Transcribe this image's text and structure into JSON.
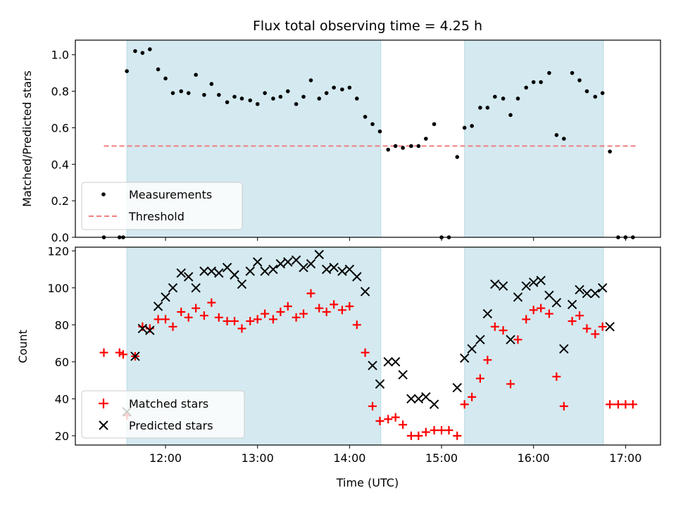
{
  "chart_data": {
    "type": "scatter",
    "title": "Flux total observing time = 4.25 h",
    "xlabel": "Time (UTC)",
    "x_ticks": [
      "12:00",
      "13:00",
      "14:00",
      "15:00",
      "16:00",
      "17:00"
    ],
    "x_tick_hours": [
      12,
      13,
      14,
      15,
      16,
      17
    ],
    "xlim_hours": [
      11.02,
      17.38
    ],
    "shaded_intervals_hours": [
      [
        11.58,
        14.34
      ],
      [
        15.25,
        16.76
      ]
    ],
    "shade_color": "#d4eaf0",
    "panels": [
      {
        "ylabel": "Matched/Predicted stars",
        "ylim": [
          0,
          1.08
        ],
        "yticks": [
          "0.0",
          "0.2",
          "0.4",
          "0.6",
          "0.8",
          "1.0"
        ],
        "ytick_values": [
          0,
          0.2,
          0.4,
          0.6,
          0.8,
          1.0
        ],
        "threshold": {
          "name": "Threshold",
          "y": 0.5,
          "x_range_hours": [
            11.33,
            17.11
          ],
          "color": "#f07f7f"
        },
        "series": [
          {
            "name": "Measurements",
            "color": "#000000",
            "marker": "dot",
            "points": [
              [
                11.33,
                0
              ],
              [
                11.5,
                0
              ],
              [
                11.54,
                0
              ],
              [
                11.58,
                0.91
              ],
              [
                11.67,
                1.02
              ],
              [
                11.75,
                1.01
              ],
              [
                11.83,
                1.03
              ],
              [
                11.92,
                0.92
              ],
              [
                12.0,
                0.87
              ],
              [
                12.08,
                0.79
              ],
              [
                12.17,
                0.8
              ],
              [
                12.25,
                0.79
              ],
              [
                12.33,
                0.89
              ],
              [
                12.42,
                0.78
              ],
              [
                12.5,
                0.84
              ],
              [
                12.58,
                0.78
              ],
              [
                12.67,
                0.74
              ],
              [
                12.75,
                0.77
              ],
              [
                12.83,
                0.76
              ],
              [
                12.92,
                0.75
              ],
              [
                13.0,
                0.73
              ],
              [
                13.08,
                0.79
              ],
              [
                13.17,
                0.76
              ],
              [
                13.25,
                0.77
              ],
              [
                13.33,
                0.8
              ],
              [
                13.42,
                0.73
              ],
              [
                13.5,
                0.77
              ],
              [
                13.58,
                0.86
              ],
              [
                13.67,
                0.76
              ],
              [
                13.75,
                0.79
              ],
              [
                13.83,
                0.82
              ],
              [
                13.92,
                0.81
              ],
              [
                14.0,
                0.82
              ],
              [
                14.08,
                0.76
              ],
              [
                14.17,
                0.66
              ],
              [
                14.25,
                0.62
              ],
              [
                14.33,
                0.58
              ],
              [
                14.42,
                0.48
              ],
              [
                14.5,
                0.5
              ],
              [
                14.58,
                0.49
              ],
              [
                14.67,
                0.5
              ],
              [
                14.75,
                0.5
              ],
              [
                14.83,
                0.54
              ],
              [
                14.92,
                0.62
              ],
              [
                15.0,
                0
              ],
              [
                15.08,
                0
              ],
              [
                15.17,
                0.44
              ],
              [
                15.25,
                0.6
              ],
              [
                15.33,
                0.61
              ],
              [
                15.42,
                0.71
              ],
              [
                15.5,
                0.71
              ],
              [
                15.58,
                0.77
              ],
              [
                15.67,
                0.76
              ],
              [
                15.75,
                0.67
              ],
              [
                15.83,
                0.76
              ],
              [
                15.92,
                0.82
              ],
              [
                16.0,
                0.85
              ],
              [
                16.08,
                0.85
              ],
              [
                16.17,
                0.9
              ],
              [
                16.25,
                0.56
              ],
              [
                16.33,
                0.54
              ],
              [
                16.42,
                0.9
              ],
              [
                16.5,
                0.86
              ],
              [
                16.58,
                0.8
              ],
              [
                16.67,
                0.77
              ],
              [
                16.75,
                0.79
              ],
              [
                16.83,
                0.47
              ],
              [
                16.92,
                0
              ],
              [
                17.0,
                0
              ],
              [
                17.08,
                0
              ]
            ]
          }
        ],
        "legend": {
          "location": "lower-left",
          "entries": [
            "Measurements",
            "Threshold"
          ]
        }
      },
      {
        "ylabel": "Count",
        "ylim": [
          15,
          122
        ],
        "yticks": [
          "20",
          "40",
          "60",
          "80",
          "100",
          "120"
        ],
        "ytick_values": [
          20,
          40,
          60,
          80,
          100,
          120
        ],
        "series": [
          {
            "name": "Matched stars",
            "color": "#ff0000",
            "marker": "plus",
            "points": [
              [
                11.33,
                65
              ],
              [
                11.5,
                65
              ],
              [
                11.54,
                64
              ],
              [
                11.58,
                31
              ],
              [
                11.67,
                63
              ],
              [
                11.75,
                79
              ],
              [
                11.83,
                78
              ],
              [
                11.92,
                83
              ],
              [
                12.0,
                83
              ],
              [
                12.08,
                79
              ],
              [
                12.17,
                87
              ],
              [
                12.25,
                84
              ],
              [
                12.33,
                89
              ],
              [
                12.42,
                85
              ],
              [
                12.5,
                92
              ],
              [
                12.58,
                84
              ],
              [
                12.67,
                82
              ],
              [
                12.75,
                82
              ],
              [
                12.83,
                78
              ],
              [
                12.92,
                82
              ],
              [
                13.0,
                83
              ],
              [
                13.08,
                86
              ],
              [
                13.17,
                83
              ],
              [
                13.25,
                87
              ],
              [
                13.33,
                90
              ],
              [
                13.42,
                84
              ],
              [
                13.5,
                86
              ],
              [
                13.58,
                97
              ],
              [
                13.67,
                89
              ],
              [
                13.75,
                87
              ],
              [
                13.83,
                91
              ],
              [
                13.92,
                88
              ],
              [
                14.0,
                90
              ],
              [
                14.08,
                80
              ],
              [
                14.17,
                65
              ],
              [
                14.25,
                36
              ],
              [
                14.33,
                28
              ],
              [
                14.42,
                29
              ],
              [
                14.5,
                30
              ],
              [
                14.58,
                26
              ],
              [
                14.67,
                20
              ],
              [
                14.75,
                20
              ],
              [
                14.83,
                22
              ],
              [
                14.92,
                23
              ],
              [
                15.0,
                23
              ],
              [
                15.08,
                23
              ],
              [
                15.17,
                20
              ],
              [
                15.25,
                37
              ],
              [
                15.33,
                41
              ],
              [
                15.42,
                51
              ],
              [
                15.5,
                61
              ],
              [
                15.58,
                79
              ],
              [
                15.67,
                77
              ],
              [
                15.75,
                48
              ],
              [
                15.83,
                72
              ],
              [
                15.92,
                83
              ],
              [
                16.0,
                88
              ],
              [
                16.08,
                89
              ],
              [
                16.17,
                86
              ],
              [
                16.25,
                52
              ],
              [
                16.33,
                36
              ],
              [
                16.42,
                82
              ],
              [
                16.5,
                85
              ],
              [
                16.58,
                78
              ],
              [
                16.67,
                75
              ],
              [
                16.75,
                79
              ],
              [
                16.83,
                37
              ],
              [
                16.92,
                37
              ],
              [
                17.0,
                37
              ],
              [
                17.08,
                37
              ]
            ]
          },
          {
            "name": "Predicted stars",
            "color": "#000000",
            "marker": "x",
            "points": [
              [
                11.58,
                33
              ],
              [
                11.67,
                63
              ],
              [
                11.75,
                78
              ],
              [
                11.83,
                77
              ],
              [
                11.92,
                90
              ],
              [
                12.0,
                95
              ],
              [
                12.08,
                100
              ],
              [
                12.17,
                108
              ],
              [
                12.25,
                106
              ],
              [
                12.33,
                100
              ],
              [
                12.42,
                109
              ],
              [
                12.5,
                109
              ],
              [
                12.58,
                108
              ],
              [
                12.67,
                111
              ],
              [
                12.75,
                107
              ],
              [
                12.83,
                102
              ],
              [
                12.92,
                109
              ],
              [
                13.0,
                114
              ],
              [
                13.08,
                109
              ],
              [
                13.17,
                110
              ],
              [
                13.25,
                113
              ],
              [
                13.33,
                114
              ],
              [
                13.42,
                115
              ],
              [
                13.5,
                111
              ],
              [
                13.58,
                113
              ],
              [
                13.67,
                118
              ],
              [
                13.75,
                110
              ],
              [
                13.83,
                111
              ],
              [
                13.92,
                109
              ],
              [
                14.0,
                110
              ],
              [
                14.08,
                106
              ],
              [
                14.17,
                98
              ],
              [
                14.25,
                58
              ],
              [
                14.33,
                48
              ],
              [
                14.42,
                60
              ],
              [
                14.5,
                60
              ],
              [
                14.58,
                53
              ],
              [
                14.67,
                40
              ],
              [
                14.75,
                40
              ],
              [
                14.83,
                41
              ],
              [
                14.92,
                37
              ],
              [
                15.17,
                46
              ],
              [
                15.25,
                62
              ],
              [
                15.33,
                67
              ],
              [
                15.42,
                72
              ],
              [
                15.5,
                86
              ],
              [
                15.58,
                102
              ],
              [
                15.67,
                101
              ],
              [
                15.75,
                72
              ],
              [
                15.83,
                95
              ],
              [
                15.92,
                101
              ],
              [
                16.0,
                103
              ],
              [
                16.08,
                104
              ],
              [
                16.17,
                96
              ],
              [
                16.25,
                92
              ],
              [
                16.33,
                67
              ],
              [
                16.42,
                91
              ],
              [
                16.5,
                99
              ],
              [
                16.58,
                97
              ],
              [
                16.67,
                97
              ],
              [
                16.75,
                100
              ],
              [
                16.83,
                79
              ]
            ]
          }
        ],
        "legend": {
          "location": "lower-left",
          "entries": [
            "Matched stars",
            "Predicted stars"
          ]
        }
      }
    ]
  }
}
